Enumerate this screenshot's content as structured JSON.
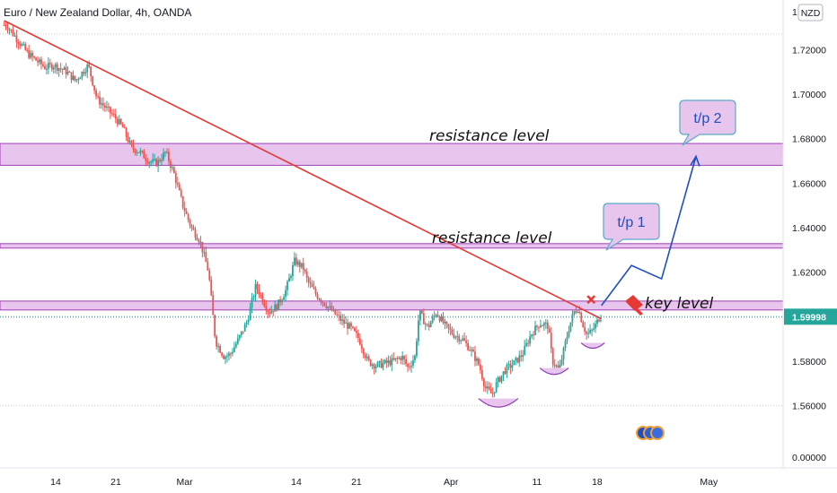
{
  "header": {
    "title": "Euro / New Zealand Dollar, 4h, OANDA",
    "currency_badge": "NZD"
  },
  "chart_data": {
    "type": "candlestick",
    "title": "Euro / New Zealand Dollar, 4h, OANDA",
    "ylim": [
      1.548,
      1.734
    ],
    "y_axis_visible_ticks": [
      "1.72000",
      "1.70000",
      "1.68000",
      "1.66000",
      "1.64000",
      "1.62000",
      "1.60000",
      "1.58000",
      "1.56000"
    ],
    "y_tick_values": [
      1.72,
      1.7,
      1.68,
      1.66,
      1.64,
      1.62,
      1.6,
      1.58,
      1.56
    ],
    "y_top_partial_label": "1.",
    "y_bottom_label": "0.00000",
    "current_price": "1.59998",
    "current_price_value": 1.59998,
    "x_ticks": [
      {
        "label": "14",
        "day": 0
      },
      {
        "label": "21",
        "day": 7
      },
      {
        "label": "Mar",
        "day": 15
      },
      {
        "label": "14",
        "day": 28
      },
      {
        "label": "21",
        "day": 35
      },
      {
        "label": "Apr",
        "day": 46
      },
      {
        "label": "11",
        "day": 56
      },
      {
        "label": "18",
        "day": 63
      },
      {
        "label": "May",
        "day": 76
      }
    ],
    "price_path": [
      [
        -5.5,
        1.731
      ],
      [
        -3,
        1.718
      ],
      [
        -1,
        1.712
      ],
      [
        0,
        1.713
      ],
      [
        1.5,
        1.71
      ],
      [
        2.5,
        1.706
      ],
      [
        4,
        1.713
      ],
      [
        5,
        1.698
      ],
      [
        6,
        1.694
      ],
      [
        7,
        1.69
      ],
      [
        8,
        1.685
      ],
      [
        9,
        1.676
      ],
      [
        10,
        1.674
      ],
      [
        11,
        1.67
      ],
      [
        12,
        1.669
      ],
      [
        13,
        1.674
      ],
      [
        14,
        1.664
      ],
      [
        15,
        1.65
      ],
      [
        16,
        1.64
      ],
      [
        17,
        1.634
      ],
      [
        18,
        1.62
      ],
      [
        18.8,
        1.589
      ],
      [
        19.8,
        1.582
      ],
      [
        20.5,
        1.583
      ],
      [
        21.5,
        1.59
      ],
      [
        22.5,
        1.598
      ],
      [
        23.5,
        1.614
      ],
      [
        24.5,
        1.606
      ],
      [
        25,
        1.602
      ],
      [
        26,
        1.605
      ],
      [
        27,
        1.612
      ],
      [
        28,
        1.625
      ],
      [
        29,
        1.622
      ],
      [
        29.5,
        1.616
      ],
      [
        30,
        1.613
      ],
      [
        30.5,
        1.61
      ],
      [
        31.5,
        1.606
      ],
      [
        32.5,
        1.602
      ],
      [
        33.5,
        1.598
      ],
      [
        34.5,
        1.595
      ],
      [
        35.5,
        1.59
      ],
      [
        36.5,
        1.58
      ],
      [
        37.5,
        1.578
      ],
      [
        38.5,
        1.579
      ],
      [
        39.5,
        1.58
      ],
      [
        40.5,
        1.582
      ],
      [
        41.2,
        1.577
      ],
      [
        42,
        1.582
      ],
      [
        42.5,
        1.602
      ],
      [
        43.5,
        1.595
      ],
      [
        44.5,
        1.602
      ],
      [
        45.5,
        1.596
      ],
      [
        46.5,
        1.592
      ],
      [
        47.5,
        1.59
      ],
      [
        48.5,
        1.585
      ],
      [
        49.5,
        1.578
      ],
      [
        50.2,
        1.568
      ],
      [
        51,
        1.565
      ],
      [
        51.5,
        1.57
      ],
      [
        52.5,
        1.576
      ],
      [
        53.5,
        1.579
      ],
      [
        54.5,
        1.583
      ],
      [
        55.5,
        1.592
      ],
      [
        56.5,
        1.597
      ],
      [
        57.5,
        1.596
      ],
      [
        58,
        1.58
      ],
      [
        58.8,
        1.576
      ],
      [
        59.5,
        1.588
      ],
      [
        60,
        1.596
      ],
      [
        60.5,
        1.602
      ],
      [
        61,
        1.604
      ],
      [
        61.5,
        1.597
      ],
      [
        62,
        1.592
      ],
      [
        62.5,
        1.593
      ],
      [
        63,
        1.596
      ],
      [
        63.5,
        1.6
      ]
    ],
    "volume_label": "",
    "annotations": {
      "resistance_upper": {
        "label": "resistance level",
        "y_low": 1.668,
        "y_high": 1.6778
      },
      "resistance_lower": {
        "label": "resistance level",
        "y_low": 1.6308,
        "y_high": 1.6328
      },
      "key_level": {
        "label": "key level",
        "y_low": 1.603,
        "y_high": 1.607
      },
      "trendline": {
        "from": [
          -6,
          1.733
        ],
        "to": [
          63.5,
          1.599
        ]
      },
      "tp1": {
        "label": "t/p 1"
      },
      "tp2": {
        "label": "t/p 2"
      },
      "projection_path": [
        [
          63.5,
          1.605
        ],
        [
          67,
          1.623
        ],
        [
          70.5,
          1.617
        ],
        [
          74.5,
          1.672
        ]
      ],
      "bottoms": [
        [
          51.5,
          1.56
        ],
        [
          58,
          1.5745
        ],
        [
          62.5,
          1.5862
        ]
      ]
    }
  }
}
